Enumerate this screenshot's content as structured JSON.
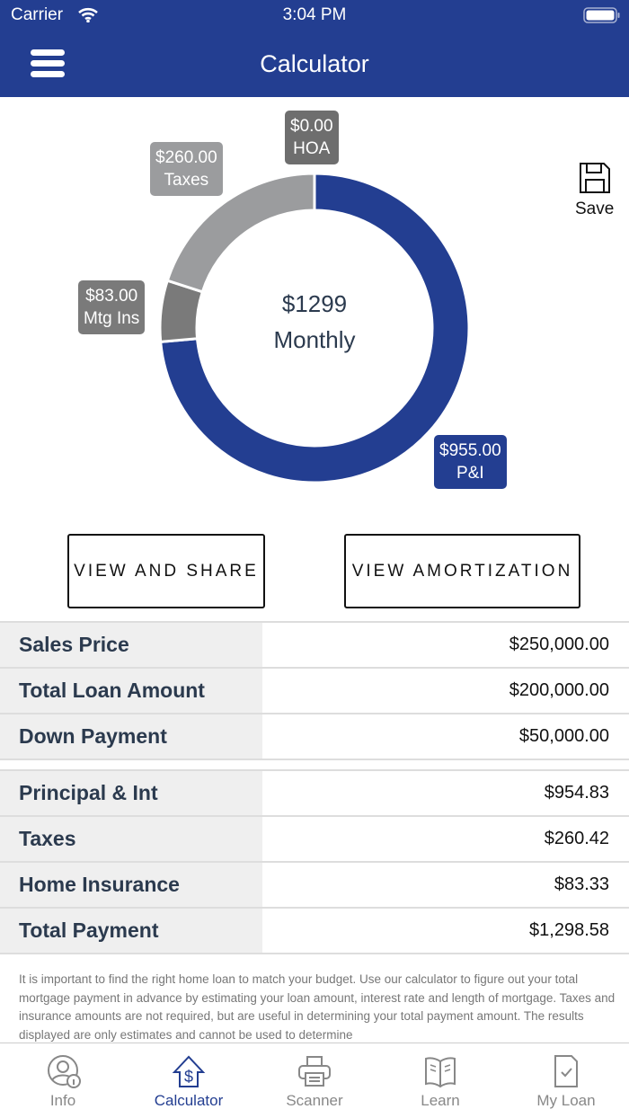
{
  "status": {
    "carrier": "Carrier",
    "time": "3:04 PM"
  },
  "header": {
    "title": "Calculator"
  },
  "chart_data": {
    "type": "pie",
    "donut": true,
    "center_value": "$1299",
    "center_label": "Monthly",
    "slices": [
      {
        "name": "P&I",
        "label": "$955.00",
        "value": 955,
        "color": "#233E91"
      },
      {
        "name": "Mtg Ins",
        "label": "$83.00",
        "value": 83,
        "color": "#7A7A7A"
      },
      {
        "name": "Taxes",
        "label": "$260.00",
        "value": 260,
        "color": "#9B9C9E"
      },
      {
        "name": "HOA",
        "label": "$0.00",
        "value": 0,
        "color": "#6E6E6E"
      }
    ]
  },
  "save_label": "Save",
  "buttons": {
    "share": "VIEW AND SHARE",
    "amortization": "VIEW AMORTIZATION"
  },
  "loan_rows": [
    {
      "k": "Sales Price",
      "v": "$250,000.00"
    },
    {
      "k": "Total Loan Amount",
      "v": "$200,000.00"
    },
    {
      "k": "Down Payment",
      "v": "$50,000.00"
    }
  ],
  "payment_rows": [
    {
      "k": "Principal & Int",
      "v": "$954.83"
    },
    {
      "k": "Taxes",
      "v": "$260.42"
    },
    {
      "k": "Home Insurance",
      "v": "$83.33"
    },
    {
      "k": "Total Payment",
      "v": "$1,298.58"
    }
  ],
  "disclaimer": "It is important to find the right home loan to match your budget. Use our calculator to figure out your total mortgage payment in advance by estimating your loan amount, interest rate and length of mortgage. Taxes and insurance amounts are not required, but are useful in determining your total payment amount. The results displayed are only estimates and cannot be used to determine",
  "tabs": [
    {
      "label": "Info",
      "icon": "user-info-icon"
    },
    {
      "label": "Calculator",
      "icon": "house-dollar-icon",
      "active": true
    },
    {
      "label": "Scanner",
      "icon": "printer-icon"
    },
    {
      "label": "Learn",
      "icon": "book-icon"
    },
    {
      "label": "My Loan",
      "icon": "document-check-icon"
    }
  ]
}
